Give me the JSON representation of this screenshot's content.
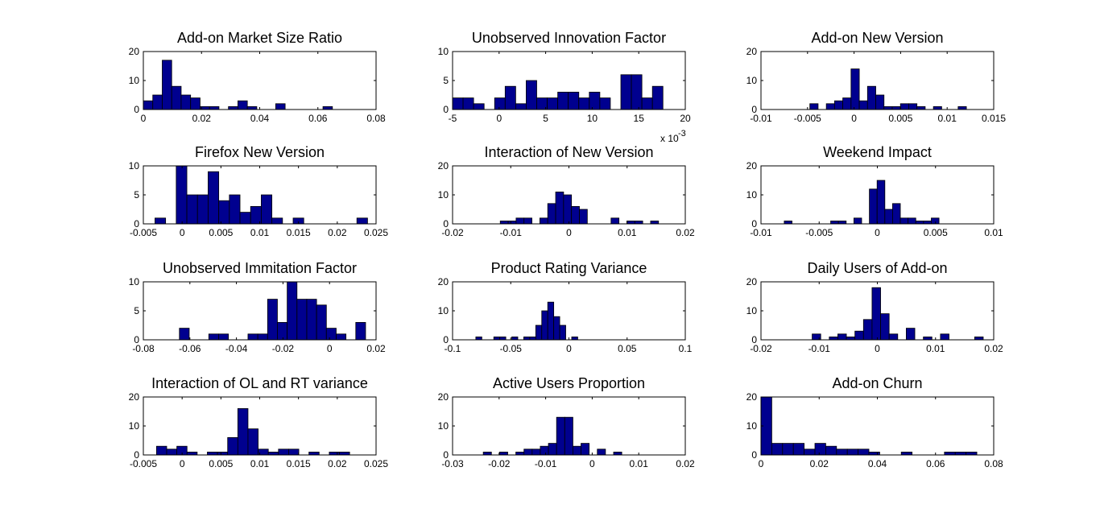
{
  "colors": {
    "bar_fill": "#00008f",
    "bar_edge": "#000000",
    "axes": "#000000",
    "background": "#ffffff"
  },
  "chart_data": [
    {
      "type": "bar",
      "title": "Add-on Market Size Ratio",
      "xlim": [
        0,
        0.08
      ],
      "ylim": [
        0,
        20
      ],
      "xticks": [
        0,
        0.02,
        0.04,
        0.06,
        0.08
      ],
      "xtick_labels": [
        "0",
        "0.02",
        "0.04",
        "0.06",
        "0.08"
      ],
      "yticks": [
        0,
        10,
        20
      ],
      "ytick_labels": [
        "0",
        "10",
        "20"
      ],
      "bin_start": 0,
      "bin_width": 0.00325,
      "values": [
        3,
        5,
        17,
        8,
        5,
        4,
        1,
        1,
        0,
        1,
        3,
        1,
        0,
        0,
        2,
        0,
        0,
        0,
        0,
        1
      ]
    },
    {
      "type": "bar",
      "title": "Unobserved Innovation Factor",
      "xlim": [
        -5,
        20
      ],
      "ylim": [
        0,
        10
      ],
      "xticks": [
        -5,
        0,
        5,
        10,
        15,
        20
      ],
      "xtick_labels": [
        "-5",
        "0",
        "5",
        "10",
        "15",
        "20"
      ],
      "yticks": [
        0,
        5,
        10
      ],
      "ytick_labels": [
        "0",
        "5",
        "10"
      ],
      "x_exponent": "x 10",
      "x_exponent_power": "-3",
      "bin_start": -5,
      "bin_width": 1.13,
      "values": [
        2,
        2,
        1,
        0,
        2,
        4,
        1,
        5,
        2,
        2,
        3,
        3,
        2,
        3,
        2,
        0,
        6,
        6,
        2,
        4
      ]
    },
    {
      "type": "bar",
      "title": "Add-on New Version",
      "xlim": [
        -0.01,
        0.015
      ],
      "ylim": [
        0,
        20
      ],
      "xticks": [
        -0.01,
        -0.005,
        0,
        0.005,
        0.01,
        0.015
      ],
      "xtick_labels": [
        "-0.01",
        "-0.005",
        "0",
        "0.005",
        "0.01",
        "0.015"
      ],
      "yticks": [
        0,
        10,
        20
      ],
      "ytick_labels": [
        "0",
        "10",
        "20"
      ],
      "bin_start": -0.00475,
      "bin_width": 0.000885,
      "values": [
        2,
        0,
        2,
        3,
        4,
        14,
        3,
        8,
        5,
        1,
        1,
        2,
        2,
        1,
        0,
        1,
        0,
        0,
        1,
        0
      ]
    },
    {
      "type": "bar",
      "title": "Firefox New Version",
      "xlim": [
        -0.005,
        0.025
      ],
      "ylim": [
        0,
        10
      ],
      "xticks": [
        -0.005,
        0,
        0.005,
        0.01,
        0.015,
        0.02,
        0.025
      ],
      "xtick_labels": [
        "-0.005",
        "0",
        "0.005",
        "0.01",
        "0.015",
        "0.02",
        "0.025"
      ],
      "yticks": [
        0,
        5,
        10
      ],
      "ytick_labels": [
        "0",
        "5",
        "10"
      ],
      "bin_start": -0.0035,
      "bin_width": 0.00137,
      "values": [
        1,
        0,
        10,
        5,
        5,
        9,
        4,
        5,
        2,
        3,
        5,
        1,
        0,
        1,
        0,
        0,
        0,
        0,
        0,
        1
      ]
    },
    {
      "type": "bar",
      "title": "Interaction of New Version",
      "xlim": [
        -0.02,
        0.02
      ],
      "ylim": [
        0,
        20
      ],
      "xticks": [
        -0.02,
        -0.01,
        0,
        0.01,
        0.02
      ],
      "xtick_labels": [
        "-0.02",
        "-0.01",
        "0",
        "0.01",
        "0.02"
      ],
      "yticks": [
        0,
        10,
        20
      ],
      "ytick_labels": [
        "0",
        "10",
        "20"
      ],
      "bin_start": -0.0118,
      "bin_width": 0.00136,
      "values": [
        1,
        1,
        2,
        2,
        0,
        2,
        7,
        11,
        10,
        6,
        5,
        0,
        0,
        0,
        2,
        0,
        1,
        1,
        0,
        1
      ]
    },
    {
      "type": "bar",
      "title": "Weekend Impact",
      "xlim": [
        -0.01,
        0.01
      ],
      "ylim": [
        0,
        20
      ],
      "xticks": [
        -0.01,
        -0.005,
        0,
        0.005,
        0.01
      ],
      "xtick_labels": [
        "-0.01",
        "-0.005",
        "0",
        "0.005",
        "0.01"
      ],
      "yticks": [
        0,
        10,
        20
      ],
      "ytick_labels": [
        "0",
        "10",
        "20"
      ],
      "bin_start": -0.008,
      "bin_width": 0.000665,
      "values": [
        1,
        0,
        0,
        0,
        0,
        0,
        1,
        1,
        0,
        2,
        0,
        12,
        15,
        5,
        7,
        2,
        2,
        1,
        1,
        2
      ]
    },
    {
      "type": "bar",
      "title": "Unobserved Immitation Factor",
      "xlim": [
        -0.08,
        0.02
      ],
      "ylim": [
        0,
        10
      ],
      "xticks": [
        -0.08,
        -0.06,
        -0.04,
        -0.02,
        0,
        0.02
      ],
      "xtick_labels": [
        "-0.08",
        "-0.06",
        "-0.04",
        "-0.02",
        "0",
        "0.02"
      ],
      "yticks": [
        0,
        5,
        10
      ],
      "ytick_labels": [
        "0",
        "5",
        "10"
      ],
      "bin_start": -0.0645,
      "bin_width": 0.00421,
      "values": [
        2,
        0,
        0,
        1,
        1,
        0,
        0,
        1,
        1,
        7,
        3,
        10,
        7,
        7,
        6,
        2,
        1,
        0,
        3,
        0
      ]
    },
    {
      "type": "bar",
      "title": "Product Rating Variance",
      "xlim": [
        -0.1,
        0.1
      ],
      "ylim": [
        0,
        20
      ],
      "xticks": [
        -0.1,
        -0.05,
        0,
        0.05,
        0.1
      ],
      "xtick_labels": [
        "-0.1",
        "-0.05",
        "0",
        "0.05",
        "0.1"
      ],
      "yticks": [
        0,
        10,
        20
      ],
      "ytick_labels": [
        "0",
        "10",
        "20"
      ],
      "bin_start": -0.08,
      "bin_width": 0.00515,
      "values": [
        1,
        0,
        0,
        1,
        1,
        0,
        1,
        0,
        1,
        1,
        5,
        10,
        13,
        8,
        5,
        0,
        1,
        0,
        0,
        0
      ]
    },
    {
      "type": "bar",
      "title": "Daily Users of Add-on",
      "xlim": [
        -0.02,
        0.02
      ],
      "ylim": [
        0,
        20
      ],
      "xticks": [
        -0.02,
        -0.01,
        0,
        0.01,
        0.02
      ],
      "xtick_labels": [
        "-0.02",
        "-0.01",
        "0",
        "0.01",
        "0.02"
      ],
      "yticks": [
        0,
        10,
        20
      ],
      "ytick_labels": [
        "0",
        "10",
        "20"
      ],
      "bin_start": -0.0112,
      "bin_width": 0.00147,
      "values": [
        2,
        0,
        1,
        2,
        1,
        3,
        7,
        18,
        9,
        2,
        0,
        4,
        0,
        1,
        0,
        2,
        0,
        0,
        0,
        1
      ]
    },
    {
      "type": "bar",
      "title": "Interaction of OL and RT variance",
      "xlim": [
        -0.005,
        0.025
      ],
      "ylim": [
        0,
        20
      ],
      "xticks": [
        -0.005,
        0,
        0.005,
        0.01,
        0.015,
        0.02,
        0.025
      ],
      "xtick_labels": [
        "-0.005",
        "0",
        "0.005",
        "0.01",
        "0.015",
        "0.02",
        "0.025"
      ],
      "yticks": [
        0,
        10,
        20
      ],
      "ytick_labels": [
        "0",
        "10",
        "20"
      ],
      "bin_start": -0.0033,
      "bin_width": 0.00131,
      "values": [
        3,
        2,
        3,
        1,
        0,
        1,
        1,
        6,
        16,
        9,
        2,
        1,
        2,
        2,
        0,
        1,
        0,
        1,
        1,
        0
      ]
    },
    {
      "type": "bar",
      "title": "Active Users Proportion",
      "xlim": [
        -0.03,
        0.02
      ],
      "ylim": [
        0,
        20
      ],
      "xticks": [
        -0.03,
        -0.02,
        -0.01,
        0,
        0.01,
        0.02
      ],
      "xtick_labels": [
        "-0.03",
        "-0.02",
        "-0.01",
        "0",
        "0.01",
        "0.02"
      ],
      "yticks": [
        0,
        10,
        20
      ],
      "ytick_labels": [
        "0",
        "10",
        "20"
      ],
      "bin_start": -0.0234,
      "bin_width": 0.00175,
      "values": [
        1,
        0,
        1,
        0,
        1,
        2,
        2,
        3,
        4,
        13,
        13,
        3,
        4,
        0,
        2,
        0,
        1,
        0,
        0,
        0
      ]
    },
    {
      "type": "bar",
      "title": "Add-on Churn",
      "xlim": [
        0,
        0.08
      ],
      "ylim": [
        0,
        20
      ],
      "xticks": [
        0,
        0.02,
        0.04,
        0.06,
        0.08
      ],
      "xtick_labels": [
        "0",
        "0.02",
        "0.04",
        "0.06",
        "0.08"
      ],
      "yticks": [
        0,
        10,
        20
      ],
      "ytick_labels": [
        "0",
        "10",
        "20"
      ],
      "bin_start": 0,
      "bin_width": 0.00371,
      "values": [
        20,
        4,
        4,
        4,
        2,
        4,
        3,
        2,
        2,
        2,
        1,
        0,
        0,
        1,
        0,
        0,
        0,
        1,
        1,
        1
      ]
    }
  ]
}
